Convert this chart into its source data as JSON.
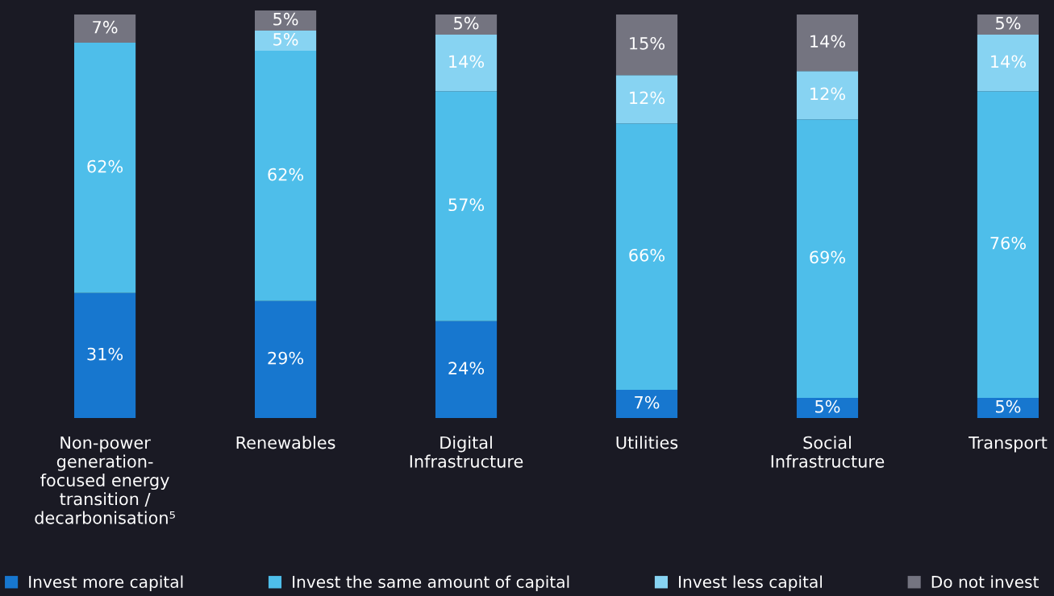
{
  "chart_data": {
    "type": "bar",
    "stacked": true,
    "legend": "bottom left",
    "categories": [
      "Non-power\ngeneration-\nfocused energy\ntransition /\ndecarbonisation⁵",
      "Renewables",
      "Digital\nInfrastructure",
      "Utilities",
      "Social\nInfrastructure",
      "Transport"
    ],
    "series": [
      {
        "name": "Invest more capital",
        "color": "#1777cf",
        "values": [
          31,
          29,
          24,
          7,
          5,
          5
        ],
        "value_labels": [
          "31%",
          "29%",
          "24%",
          "7%",
          "5%",
          "5%"
        ]
      },
      {
        "name": "Invest the same amount of capital",
        "color": "#4ebeea",
        "values": [
          62,
          62,
          57,
          66,
          69,
          76
        ],
        "value_labels": [
          "62%",
          "62%",
          "57%",
          "66%",
          "69%",
          "76%"
        ]
      },
      {
        "name": "Invest less capital",
        "color": "#87d3f2",
        "values": [
          null,
          5,
          14,
          12,
          12,
          14
        ],
        "value_labels": [
          null,
          "5%",
          "14%",
          "12%",
          "12%",
          "14%"
        ]
      },
      {
        "name": "Do not invest",
        "color": "#747480",
        "values": [
          7,
          5,
          5,
          15,
          14,
          5
        ],
        "value_labels": [
          "7%",
          "5%",
          "5%",
          "15%",
          "14%",
          "5%"
        ]
      }
    ]
  }
}
